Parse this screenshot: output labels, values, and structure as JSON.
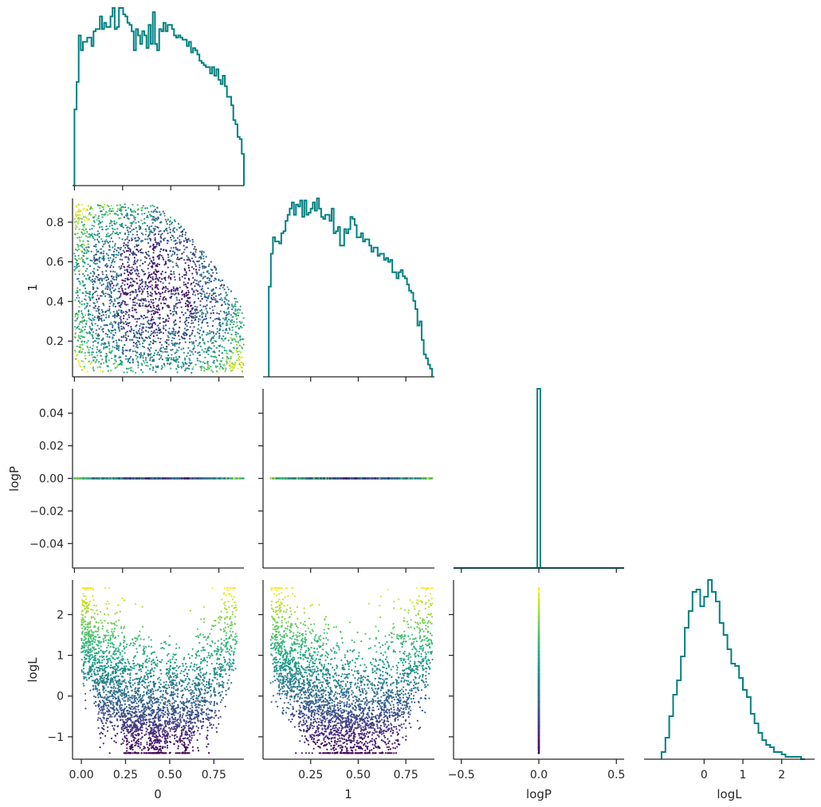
{
  "chart_data": {
    "type": "pairplot",
    "variables": [
      "0",
      "1",
      "logP",
      "logL"
    ],
    "colormap": "viridis",
    "color_variable": "logL",
    "hist_color": "#008080",
    "panels": [
      {
        "id": "hist-0",
        "type": "histogram",
        "row": 0,
        "col": 0,
        "variable": "0",
        "x_range": [
          -0.01,
          0.88
        ],
        "bin_edges": [
          0.0,
          0.011,
          0.022,
          0.033,
          0.044,
          0.055,
          0.066,
          0.077,
          0.088,
          0.099,
          0.11,
          0.121,
          0.132,
          0.143,
          0.154,
          0.165,
          0.176,
          0.187,
          0.198,
          0.209,
          0.22,
          0.231,
          0.242,
          0.253,
          0.264,
          0.275,
          0.286,
          0.297,
          0.308,
          0.319,
          0.33,
          0.341,
          0.352,
          0.363,
          0.374,
          0.385,
          0.396,
          0.407,
          0.418,
          0.429,
          0.44,
          0.451,
          0.462,
          0.473,
          0.484,
          0.495,
          0.506,
          0.517,
          0.528,
          0.539,
          0.55,
          0.561,
          0.572,
          0.583,
          0.594,
          0.605,
          0.616,
          0.627,
          0.638,
          0.649,
          0.66,
          0.671,
          0.682,
          0.693,
          0.704,
          0.715,
          0.726,
          0.737,
          0.748,
          0.759,
          0.77,
          0.781,
          0.792,
          0.803,
          0.814,
          0.825,
          0.836,
          0.847,
          0.858,
          0.869,
          0.88
        ],
        "counts": [
          36,
          49,
          71,
          64,
          68,
          68,
          70,
          70,
          66,
          73,
          74,
          74,
          80,
          74,
          77,
          75,
          75,
          80,
          84,
          74,
          75,
          84,
          84,
          81,
          80,
          77,
          76,
          73,
          64,
          74,
          71,
          67,
          73,
          71,
          65,
          76,
          67,
          82,
          67,
          64,
          74,
          73,
          77,
          73,
          76,
          76,
          74,
          71,
          70,
          71,
          70,
          69,
          69,
          66,
          68,
          63,
          65,
          64,
          62,
          59,
          58,
          57,
          56,
          56,
          53,
          56,
          52,
          55,
          50,
          48,
          52,
          47,
          42,
          42,
          38,
          31,
          29,
          23,
          22,
          15
        ],
        "x_ticks": [
          0.0,
          0.25,
          0.5,
          0.75
        ]
      },
      {
        "id": "scatter-1-0",
        "type": "scatter",
        "row": 1,
        "col": 0,
        "x": "0",
        "y": "1",
        "x_range": [
          -0.01,
          0.88
        ],
        "y_range": [
          0.02,
          0.92
        ],
        "y_ticks": [
          0.2,
          0.4,
          0.6,
          0.8
        ],
        "y_tick_labels": [
          "0.2",
          "0.4",
          "0.6",
          "0.8"
        ],
        "x_ticks": [
          0.0,
          0.25,
          0.5,
          0.75
        ]
      },
      {
        "id": "hist-1",
        "type": "histogram",
        "row": 1,
        "col": 1,
        "variable": "1",
        "x_range": [
          0.0,
          0.9
        ],
        "bin_edges": [
          0.03,
          0.041,
          0.052,
          0.063,
          0.074,
          0.085,
          0.096,
          0.107,
          0.118,
          0.129,
          0.14,
          0.151,
          0.162,
          0.173,
          0.184,
          0.195,
          0.206,
          0.217,
          0.228,
          0.239,
          0.25,
          0.261,
          0.272,
          0.283,
          0.294,
          0.305,
          0.316,
          0.327,
          0.338,
          0.349,
          0.36,
          0.371,
          0.382,
          0.393,
          0.404,
          0.415,
          0.426,
          0.437,
          0.448,
          0.459,
          0.47,
          0.481,
          0.492,
          0.503,
          0.514,
          0.525,
          0.536,
          0.547,
          0.558,
          0.569,
          0.58,
          0.591,
          0.602,
          0.613,
          0.624,
          0.635,
          0.646,
          0.657,
          0.668,
          0.679,
          0.69,
          0.701,
          0.712,
          0.723,
          0.734,
          0.745,
          0.756,
          0.767,
          0.778,
          0.789,
          0.8,
          0.811,
          0.822,
          0.833,
          0.844,
          0.855,
          0.866,
          0.877,
          0.888
        ],
        "counts": [
          44,
          60,
          68,
          66,
          66,
          65,
          70,
          71,
          76,
          79,
          82,
          85,
          79,
          84,
          83,
          86,
          78,
          86,
          79,
          80,
          82,
          85,
          81,
          87,
          82,
          78,
          77,
          79,
          79,
          76,
          82,
          70,
          71,
          73,
          64,
          64,
          72,
          70,
          72,
          78,
          77,
          74,
          68,
          68,
          70,
          66,
          67,
          67,
          64,
          61,
          63,
          63,
          59,
          60,
          60,
          57,
          58,
          56,
          57,
          51,
          51,
          48,
          51,
          52,
          49,
          48,
          45,
          42,
          41,
          37,
          33,
          25,
          27,
          18,
          11,
          9,
          6,
          4
        ],
        "x_ticks": [
          0.25,
          0.5,
          0.75
        ]
      },
      {
        "id": "scatter-2-0",
        "type": "scatter",
        "row": 2,
        "col": 0,
        "x": "0",
        "y": "logP",
        "x_range": [
          -0.01,
          0.88
        ],
        "y_range": [
          -0.055,
          0.055
        ],
        "y_ticks": [
          -0.04,
          -0.02,
          0.0,
          0.02,
          0.04
        ],
        "y_tick_labels": [
          "−0.04",
          "−0.02",
          "0.00",
          "0.02",
          "0.04"
        ],
        "x_ticks": [
          0.0,
          0.25,
          0.5,
          0.75
        ]
      },
      {
        "id": "scatter-2-1",
        "type": "scatter",
        "row": 2,
        "col": 1,
        "x": "1",
        "y": "logP",
        "x_range": [
          0.0,
          0.9
        ],
        "y_range": [
          -0.055,
          0.055
        ],
        "x_ticks": [
          0.25,
          0.5,
          0.75
        ]
      },
      {
        "id": "hist-2",
        "type": "histogram",
        "row": 2,
        "col": 2,
        "variable": "logP",
        "x_range": [
          -0.55,
          0.55
        ],
        "bin_edges": [
          -0.01,
          0.01
        ],
        "counts": [
          1
        ],
        "x_ticks": [
          -0.5,
          0.0,
          0.5
        ]
      },
      {
        "id": "scatter-3-0",
        "type": "scatter",
        "row": 3,
        "col": 0,
        "x": "0",
        "y": "logL",
        "x_range": [
          -0.05,
          0.92
        ],
        "y_range": [
          -1.55,
          2.85
        ],
        "x_ticks": [
          0.0,
          0.25,
          0.5,
          0.75
        ],
        "x_tick_labels": [
          "0.00",
          "0.25",
          "0.50",
          "0.75"
        ],
        "y_ticks": [
          -1,
          0,
          1,
          2
        ],
        "y_tick_labels": [
          "−1",
          "0",
          "1",
          "2"
        ]
      },
      {
        "id": "scatter-3-1",
        "type": "scatter",
        "row": 3,
        "col": 1,
        "x": "1",
        "y": "logL",
        "x_range": [
          0.0,
          0.9
        ],
        "y_range": [
          -1.55,
          2.85
        ],
        "x_ticks": [
          0.25,
          0.5,
          0.75
        ],
        "x_tick_labels": [
          "0.25",
          "0.50",
          "0.75"
        ]
      },
      {
        "id": "scatter-3-2",
        "type": "scatter",
        "row": 3,
        "col": 2,
        "x": "logP",
        "y": "logL",
        "x_range": [
          -0.55,
          0.55
        ],
        "y_range": [
          -1.55,
          2.85
        ],
        "x_ticks": [
          -0.5,
          0.0,
          0.5
        ],
        "x_tick_labels": [
          "−0.5",
          "0.0",
          "0.5"
        ]
      },
      {
        "id": "hist-3",
        "type": "histogram",
        "row": 3,
        "col": 3,
        "variable": "logL",
        "x_range": [
          -1.55,
          2.85
        ],
        "bin_edges": [
          -1.1,
          -1.0,
          -0.9,
          -0.8,
          -0.7,
          -0.6,
          -0.5,
          -0.4,
          -0.3,
          -0.2,
          -0.1,
          0.0,
          0.1,
          0.2,
          0.3,
          0.4,
          0.5,
          0.6,
          0.7,
          0.8,
          0.9,
          1.0,
          1.1,
          1.2,
          1.3,
          1.4,
          1.5,
          1.6,
          1.7,
          1.8,
          1.9,
          2.0,
          2.1,
          2.2,
          2.3,
          2.4,
          2.5,
          2.6
        ],
        "counts": [
          3,
          9,
          18,
          27,
          33,
          43,
          55,
          62,
          70,
          71,
          64,
          68,
          75,
          70,
          66,
          57,
          52,
          46,
          40,
          39,
          34,
          29,
          26,
          19,
          15,
          11,
          8,
          6,
          5,
          3,
          3,
          2,
          1,
          1,
          1,
          1,
          0
        ],
        "x_ticks": [
          0,
          1,
          2
        ],
        "x_tick_labels": [
          "0",
          "1",
          "2"
        ]
      }
    ],
    "axis_labels": {
      "x": [
        "0",
        "1",
        "logP",
        "logL"
      ],
      "y": [
        "1",
        "logP",
        "logL"
      ]
    }
  }
}
